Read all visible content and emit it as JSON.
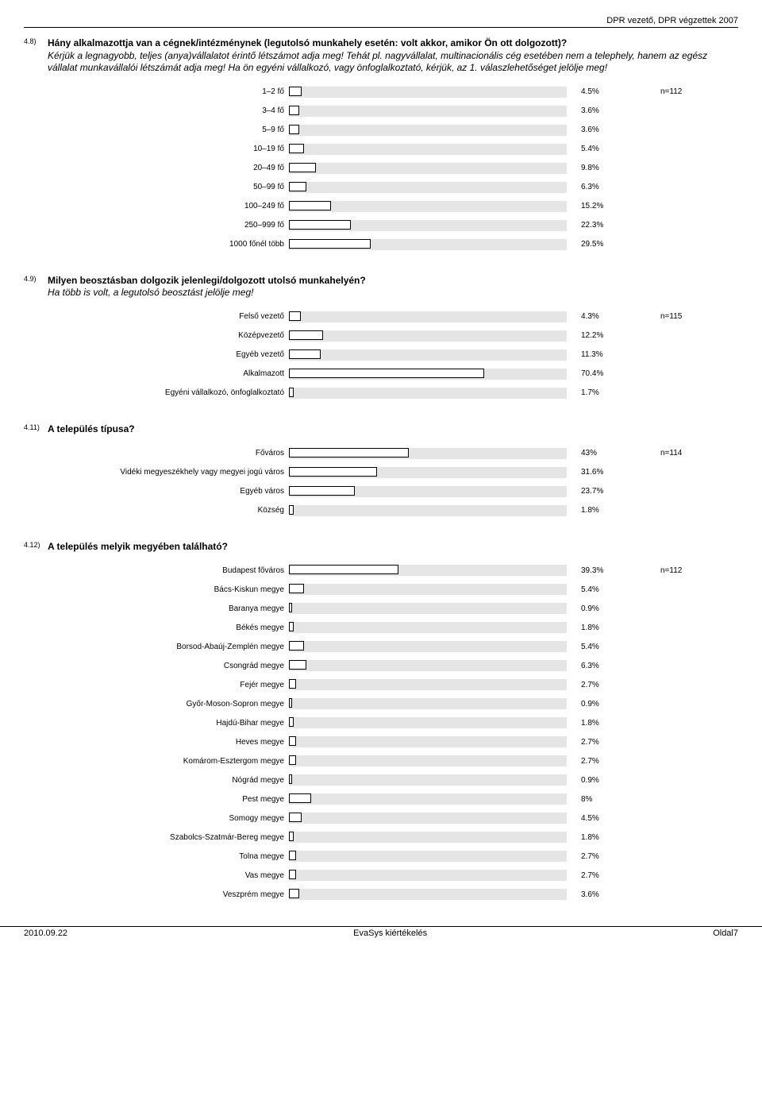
{
  "header": "DPR vezető, DPR végzettek 2007",
  "bar_track_width": 350,
  "bar_bg": "#e5e5e5",
  "bar_fill": "#ffffff",
  "bar_border": "#000000",
  "label_fontsize": 10,
  "questions": [
    {
      "num": "4.8)",
      "title_bold": "Hány alkalmazottja van a cégnek/intézménynek (legutolsó munkahely esetén: volt akkor, amikor Ön ott dolgozott)?",
      "title_ital": "Kérjük a legnagyobb, teljes (anya)vállalatot érintő létszámot adja meg! Tehát pl. nagyvállalat, multinacionális cég esetében nem a telephely, hanem az egész vállalat munkavállalói létszámát adja meg! Ha ön egyéni vállalkozó, vagy önfoglalkoztató, kérjük, az 1. válaszlehetőséget jelölje meg!",
      "n": "n=112",
      "rows": [
        {
          "label": "1–2 fő",
          "pct": 4.5,
          "pct_text": "4.5%"
        },
        {
          "label": "3–4 fő",
          "pct": 3.6,
          "pct_text": "3.6%"
        },
        {
          "label": "5–9 fő",
          "pct": 3.6,
          "pct_text": "3.6%"
        },
        {
          "label": "10–19 fő",
          "pct": 5.4,
          "pct_text": "5.4%"
        },
        {
          "label": "20–49 fő",
          "pct": 9.8,
          "pct_text": "9.8%"
        },
        {
          "label": "50–99 fő",
          "pct": 6.3,
          "pct_text": "6.3%"
        },
        {
          "label": "100–249 fő",
          "pct": 15.2,
          "pct_text": "15.2%"
        },
        {
          "label": "250–999 fő",
          "pct": 22.3,
          "pct_text": "22.3%"
        },
        {
          "label": "1000 főnél több",
          "pct": 29.5,
          "pct_text": "29.5%"
        }
      ]
    },
    {
      "num": "4.9)",
      "title_bold": "Milyen beosztásban dolgozik jelenlegi/dolgozott utolsó munkahelyén?",
      "title_ital": "Ha több is volt, a legutolsó beosztást jelölje meg!",
      "n": "n=115",
      "rows": [
        {
          "label": "Felső vezető",
          "pct": 4.3,
          "pct_text": "4.3%"
        },
        {
          "label": "Középvezető",
          "pct": 12.2,
          "pct_text": "12.2%"
        },
        {
          "label": "Egyéb vezető",
          "pct": 11.3,
          "pct_text": "11.3%"
        },
        {
          "label": "Alkalmazott",
          "pct": 70.4,
          "pct_text": "70.4%"
        },
        {
          "label": "Egyéni vállalkozó, önfoglalkoztató",
          "pct": 1.7,
          "pct_text": "1.7%"
        }
      ]
    },
    {
      "num": "4.11)",
      "title_bold": "A település típusa?",
      "title_ital": "",
      "n": "n=114",
      "rows": [
        {
          "label": "Főváros",
          "pct": 43,
          "pct_text": "43%"
        },
        {
          "label": "Vidéki megyeszékhely vagy megyei jogú város",
          "pct": 31.6,
          "pct_text": "31.6%"
        },
        {
          "label": "Egyéb város",
          "pct": 23.7,
          "pct_text": "23.7%"
        },
        {
          "label": "Község",
          "pct": 1.8,
          "pct_text": "1.8%"
        }
      ]
    },
    {
      "num": "4.12)",
      "title_bold": "A település melyik megyében található?",
      "title_ital": "",
      "n": "n=112",
      "rows": [
        {
          "label": "Budapest főváros",
          "pct": 39.3,
          "pct_text": "39.3%"
        },
        {
          "label": "Bács-Kiskun megye",
          "pct": 5.4,
          "pct_text": "5.4%"
        },
        {
          "label": "Baranya megye",
          "pct": 0.9,
          "pct_text": "0.9%"
        },
        {
          "label": "Békés megye",
          "pct": 1.8,
          "pct_text": "1.8%"
        },
        {
          "label": "Borsod-Abaúj-Zemplén megye",
          "pct": 5.4,
          "pct_text": "5.4%"
        },
        {
          "label": "Csongrád megye",
          "pct": 6.3,
          "pct_text": "6.3%"
        },
        {
          "label": "Fejér megye",
          "pct": 2.7,
          "pct_text": "2.7%"
        },
        {
          "label": "Győr-Moson-Sopron megye",
          "pct": 0.9,
          "pct_text": "0.9%"
        },
        {
          "label": "Hajdú-Bihar megye",
          "pct": 1.8,
          "pct_text": "1.8%"
        },
        {
          "label": "Heves megye",
          "pct": 2.7,
          "pct_text": "2.7%"
        },
        {
          "label": "Komárom-Esztergom megye",
          "pct": 2.7,
          "pct_text": "2.7%"
        },
        {
          "label": "Nógrád megye",
          "pct": 0.9,
          "pct_text": "0.9%"
        },
        {
          "label": "Pest megye",
          "pct": 8,
          "pct_text": "8%"
        },
        {
          "label": "Somogy megye",
          "pct": 4.5,
          "pct_text": "4.5%"
        },
        {
          "label": "Szabolcs-Szatmár-Bereg megye",
          "pct": 1.8,
          "pct_text": "1.8%"
        },
        {
          "label": "Tolna megye",
          "pct": 2.7,
          "pct_text": "2.7%"
        },
        {
          "label": "Vas megye",
          "pct": 2.7,
          "pct_text": "2.7%"
        },
        {
          "label": "Veszprém megye",
          "pct": 3.6,
          "pct_text": "3.6%"
        }
      ]
    }
  ],
  "footer": {
    "left": "2010.09.22",
    "center": "EvaSys kiértékelés",
    "right": "Oldal7"
  }
}
